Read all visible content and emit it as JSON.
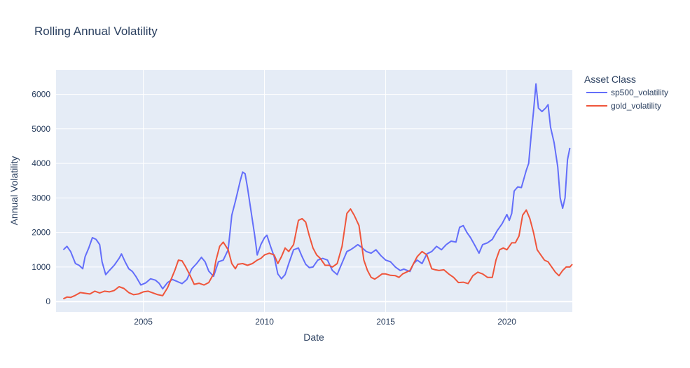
{
  "chart_data": {
    "type": "line",
    "title": "Rolling Annual Volatility",
    "xlabel": "Date",
    "ylabel": "Annual Volatility",
    "legend_title": "Asset Class",
    "legend_placement": "top-right",
    "grid": true,
    "xlim": [
      2001.4,
      2022.7
    ],
    "ylim": [
      -300,
      6700
    ],
    "x_ticks": [
      2005,
      2010,
      2015,
      2020
    ],
    "y_ticks": [
      0,
      1000,
      2000,
      3000,
      4000,
      5000,
      6000
    ],
    "colors": {
      "plot_bg": "#e5ecf6",
      "grid": "#ffffff",
      "text": "#2a3f5f"
    },
    "series": [
      {
        "name": "sp500_volatility",
        "color": "#636efa",
        "x": [
          2001.7,
          2001.85,
          2002.0,
          2002.2,
          2002.35,
          2002.5,
          2002.6,
          2002.75,
          2002.9,
          2003.05,
          2003.2,
          2003.3,
          2003.45,
          2003.6,
          2003.8,
          2004.0,
          2004.1,
          2004.25,
          2004.4,
          2004.55,
          2004.7,
          2004.9,
          2005.1,
          2005.3,
          2005.5,
          2005.65,
          2005.8,
          2006.0,
          2006.2,
          2006.4,
          2006.6,
          2006.8,
          2007.0,
          2007.2,
          2007.4,
          2007.55,
          2007.7,
          2007.9,
          2008.1,
          2008.3,
          2008.5,
          2008.65,
          2008.8,
          2008.9,
          2009.0,
          2009.1,
          2009.2,
          2009.3,
          2009.45,
          2009.6,
          2009.7,
          2009.85,
          2010.0,
          2010.1,
          2010.25,
          2010.4,
          2010.55,
          2010.7,
          2010.85,
          2011.0,
          2011.2,
          2011.4,
          2011.55,
          2011.7,
          2011.85,
          2012.0,
          2012.2,
          2012.4,
          2012.6,
          2012.8,
          2013.0,
          2013.1,
          2013.25,
          2013.4,
          2013.55,
          2013.7,
          2013.85,
          2014.0,
          2014.2,
          2014.4,
          2014.6,
          2014.8,
          2015.0,
          2015.2,
          2015.4,
          2015.6,
          2015.75,
          2015.9,
          2016.0,
          2016.15,
          2016.3,
          2016.5,
          2016.7,
          2016.9,
          2017.1,
          2017.3,
          2017.5,
          2017.7,
          2017.9,
          2018.05,
          2018.2,
          2018.35,
          2018.5,
          2018.7,
          2018.85,
          2019.0,
          2019.2,
          2019.4,
          2019.6,
          2019.8,
          2020.0,
          2020.1,
          2020.2,
          2020.3,
          2020.45,
          2020.6,
          2020.8,
          2020.9,
          2021.0,
          2021.1,
          2021.2,
          2021.3,
          2021.45,
          2021.6,
          2021.7,
          2021.8,
          2021.95,
          2022.1,
          2022.2,
          2022.3,
          2022.4,
          2022.5,
          2022.6
        ],
        "values": [
          1500,
          1600,
          1450,
          1100,
          1050,
          950,
          1300,
          1550,
          1850,
          1800,
          1650,
          1150,
          780,
          900,
          1050,
          1250,
          1380,
          1150,
          950,
          870,
          720,
          480,
          540,
          660,
          620,
          530,
          370,
          550,
          640,
          580,
          520,
          640,
          950,
          1100,
          1280,
          1150,
          880,
          730,
          1150,
          1200,
          1500,
          2500,
          2900,
          3200,
          3500,
          3750,
          3700,
          3300,
          2600,
          1900,
          1350,
          1650,
          1850,
          1920,
          1600,
          1300,
          800,
          660,
          780,
          1100,
          1500,
          1550,
          1300,
          1080,
          980,
          1000,
          1200,
          1250,
          1200,
          900,
          780,
          950,
          1200,
          1450,
          1500,
          1570,
          1650,
          1570,
          1450,
          1400,
          1500,
          1330,
          1200,
          1150,
          1000,
          900,
          940,
          900,
          870,
          1100,
          1200,
          1100,
          1380,
          1450,
          1600,
          1500,
          1650,
          1750,
          1720,
          2150,
          2200,
          2000,
          1850,
          1600,
          1400,
          1650,
          1700,
          1800,
          2050,
          2250,
          2520,
          2350,
          2550,
          3200,
          3320,
          3300,
          3800,
          4000,
          4800,
          5500,
          6300,
          5600,
          5500,
          5600,
          5700,
          5050,
          4600,
          3900,
          3000,
          2700,
          3000,
          4100,
          4450
        ]
      },
      {
        "name": "gold_volatility",
        "color": "#ef553b",
        "x": [
          2001.7,
          2001.85,
          2002.0,
          2002.2,
          2002.4,
          2002.6,
          2002.8,
          2003.0,
          2003.2,
          2003.4,
          2003.6,
          2003.8,
          2004.0,
          2004.2,
          2004.4,
          2004.6,
          2004.8,
          2005.0,
          2005.2,
          2005.4,
          2005.6,
          2005.8,
          2006.0,
          2006.15,
          2006.3,
          2006.45,
          2006.6,
          2006.75,
          2006.9,
          2007.1,
          2007.3,
          2007.5,
          2007.7,
          2007.9,
          2008.0,
          2008.15,
          2008.3,
          2008.5,
          2008.65,
          2008.8,
          2008.9,
          2009.1,
          2009.3,
          2009.5,
          2009.7,
          2009.85,
          2010.0,
          2010.2,
          2010.4,
          2010.55,
          2010.7,
          2010.85,
          2011.0,
          2011.2,
          2011.4,
          2011.55,
          2011.7,
          2011.85,
          2012.0,
          2012.15,
          2012.3,
          2012.5,
          2012.65,
          2012.8,
          2013.0,
          2013.2,
          2013.4,
          2013.55,
          2013.7,
          2013.9,
          2014.1,
          2014.25,
          2014.4,
          2014.55,
          2014.7,
          2014.85,
          2015.0,
          2015.2,
          2015.4,
          2015.55,
          2015.7,
          2015.85,
          2016.0,
          2016.15,
          2016.3,
          2016.5,
          2016.7,
          2016.9,
          2017.05,
          2017.2,
          2017.4,
          2017.6,
          2017.8,
          2018.0,
          2018.2,
          2018.4,
          2018.6,
          2018.8,
          2019.0,
          2019.2,
          2019.4,
          2019.55,
          2019.7,
          2019.85,
          2020.0,
          2020.2,
          2020.35,
          2020.5,
          2020.65,
          2020.8,
          2020.95,
          2021.1,
          2021.25,
          2021.4,
          2021.55,
          2021.7,
          2021.85,
          2022.0,
          2022.15,
          2022.3,
          2022.45,
          2022.6,
          2022.7
        ],
        "values": [
          80,
          130,
          120,
          180,
          260,
          240,
          220,
          300,
          250,
          300,
          280,
          320,
          430,
          380,
          260,
          200,
          220,
          280,
          300,
          250,
          200,
          170,
          400,
          650,
          900,
          1200,
          1180,
          1000,
          800,
          500,
          530,
          480,
          550,
          800,
          1200,
          1600,
          1720,
          1500,
          1100,
          950,
          1080,
          1100,
          1050,
          1100,
          1200,
          1250,
          1350,
          1400,
          1350,
          1100,
          1300,
          1550,
          1450,
          1650,
          2350,
          2400,
          2300,
          1900,
          1550,
          1350,
          1250,
          1050,
          1050,
          1000,
          1100,
          1600,
          2550,
          2680,
          2500,
          2200,
          1200,
          900,
          700,
          650,
          720,
          800,
          800,
          760,
          750,
          700,
          800,
          850,
          900,
          1100,
          1300,
          1450,
          1350,
          950,
          920,
          900,
          920,
          800,
          700,
          550,
          560,
          520,
          750,
          850,
          800,
          700,
          700,
          1200,
          1500,
          1550,
          1500,
          1700,
          1700,
          1900,
          2500,
          2650,
          2400,
          2000,
          1500,
          1350,
          1200,
          1150,
          1000,
          850,
          750,
          900,
          1000,
          1000,
          1080
        ]
      }
    ]
  }
}
